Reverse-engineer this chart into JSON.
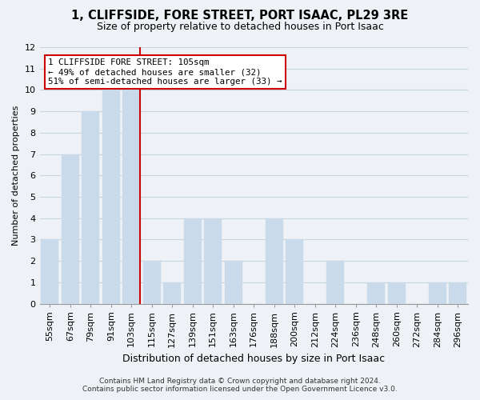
{
  "title": "1, CLIFFSIDE, FORE STREET, PORT ISAAC, PL29 3RE",
  "subtitle": "Size of property relative to detached houses in Port Isaac",
  "xlabel": "Distribution of detached houses by size in Port Isaac",
  "ylabel": "Number of detached properties",
  "bar_labels": [
    "55sqm",
    "67sqm",
    "79sqm",
    "91sqm",
    "103sqm",
    "115sqm",
    "127sqm",
    "139sqm",
    "151sqm",
    "163sqm",
    "176sqm",
    "188sqm",
    "200sqm",
    "212sqm",
    "224sqm",
    "236sqm",
    "248sqm",
    "260sqm",
    "272sqm",
    "284sqm",
    "296sqm"
  ],
  "bar_values": [
    3,
    7,
    9,
    10,
    10,
    2,
    1,
    4,
    4,
    2,
    0,
    4,
    3,
    0,
    2,
    0,
    1,
    1,
    0,
    1,
    1
  ],
  "bar_color": "#c9daea",
  "vline_color": "#cc0000",
  "vline_index": 4,
  "annotation_title": "1 CLIFFSIDE FORE STREET: 105sqm",
  "annotation_line1": "← 49% of detached houses are smaller (32)",
  "annotation_line2": "51% of semi-detached houses are larger (33) →",
  "annotation_box_facecolor": "#ffffff",
  "annotation_box_edgecolor": "#cc0000",
  "ylim": [
    0,
    12
  ],
  "yticks": [
    0,
    1,
    2,
    3,
    4,
    5,
    6,
    7,
    8,
    9,
    10,
    11,
    12
  ],
  "grid_color": "#c8d4e0",
  "footer_line1": "Contains HM Land Registry data © Crown copyright and database right 2024.",
  "footer_line2": "Contains public sector information licensed under the Open Government Licence v3.0.",
  "bg_color": "#eef2f6",
  "title_fontsize": 10.5,
  "subtitle_fontsize": 9,
  "ylabel_fontsize": 8,
  "xlabel_fontsize": 9,
  "tick_fontsize": 8,
  "ann_fontsize": 7.8,
  "footer_fontsize": 6.5
}
